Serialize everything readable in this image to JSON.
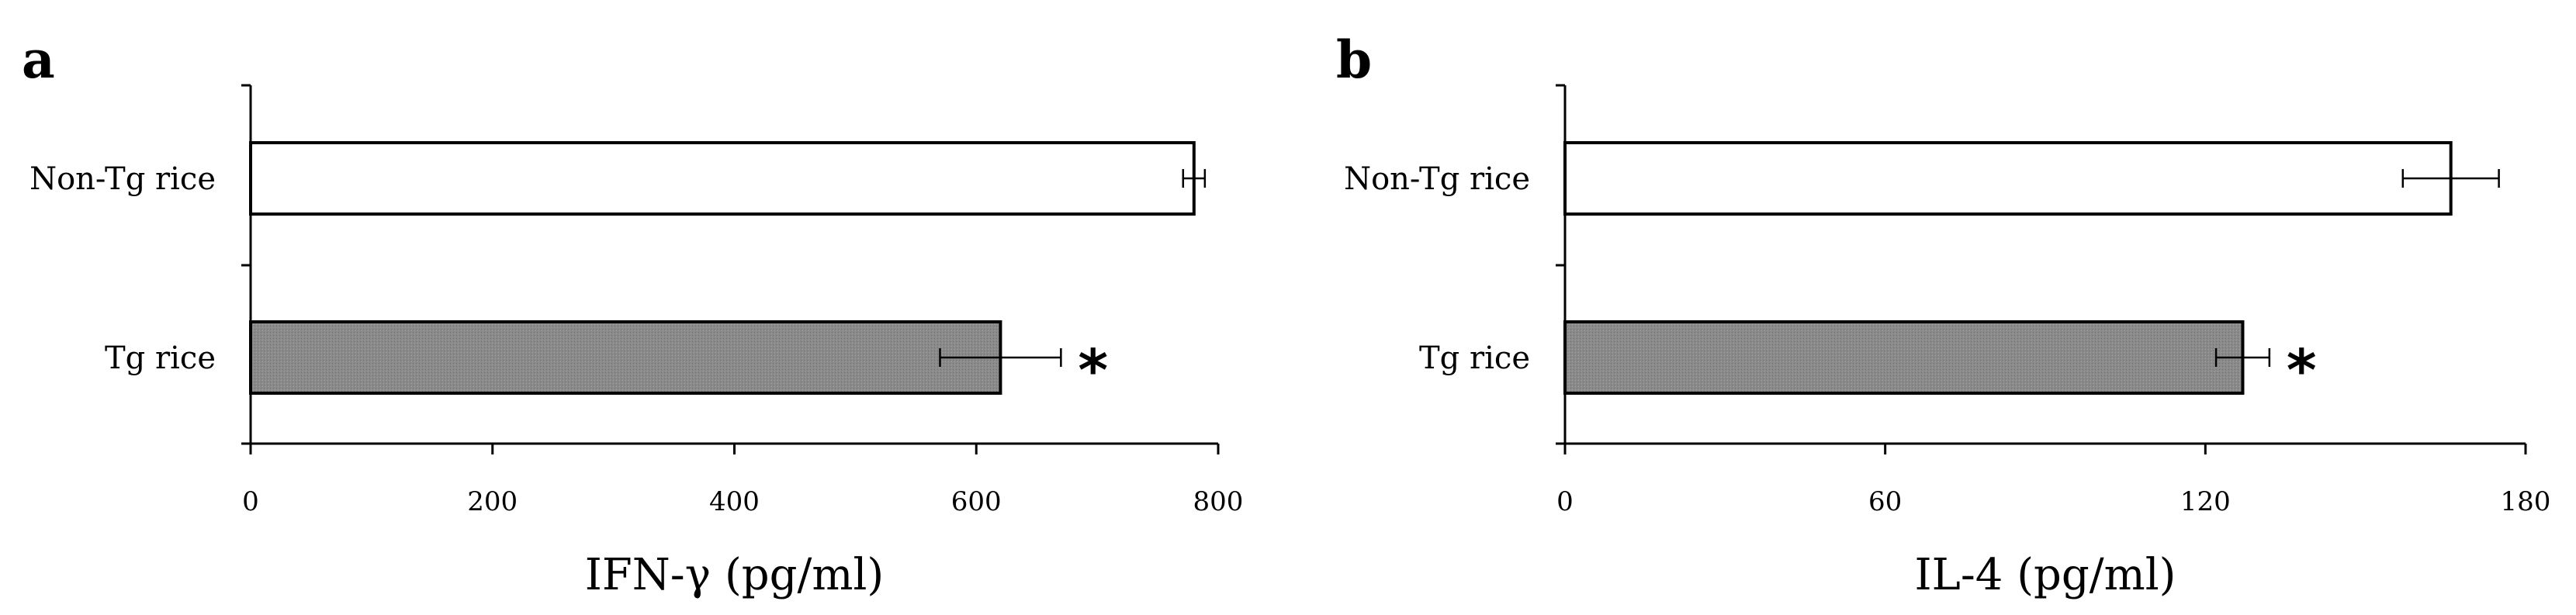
{
  "colors": {
    "filled_bar": "#8a8a8a",
    "open_bar": "#ffffff",
    "stroke": "#000000"
  },
  "chart_data": [
    {
      "type": "bar",
      "orientation": "horizontal",
      "panel": "a",
      "categories": [
        "Non-Tg rice",
        "Tg rice"
      ],
      "values": [
        780,
        620
      ],
      "errors": [
        9,
        50
      ],
      "significance": [
        "",
        "*"
      ],
      "bar_fill": [
        "open",
        "filled"
      ],
      "xlabel": "IFN-γ (pg/ml)",
      "xlim": [
        0,
        800
      ],
      "xticks": [
        0,
        200,
        400,
        600,
        800
      ],
      "grid": false
    },
    {
      "type": "bar",
      "orientation": "horizontal",
      "panel": "b",
      "categories": [
        "Non-Tg rice",
        "Tg rice"
      ],
      "values": [
        166,
        127
      ],
      "errors": [
        9,
        5
      ],
      "significance": [
        "",
        "*"
      ],
      "bar_fill": [
        "open",
        "filled"
      ],
      "xlabel": "IL-4 (pg/ml)",
      "xlim": [
        0,
        180
      ],
      "xticks": [
        0,
        60,
        120,
        180
      ],
      "grid": false
    }
  ]
}
